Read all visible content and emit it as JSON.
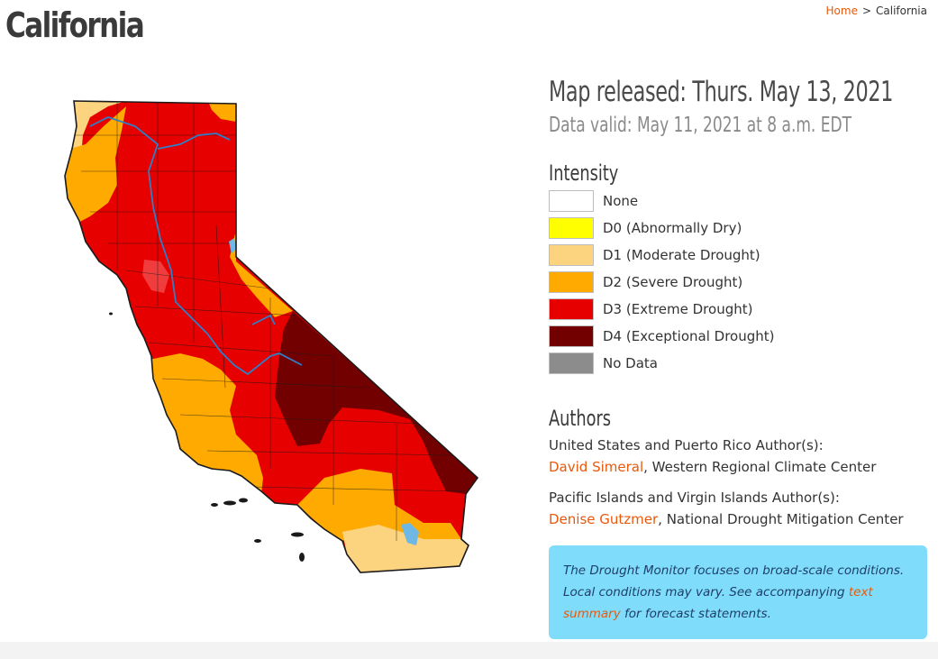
{
  "page": {
    "title": "California"
  },
  "breadcrumb": {
    "home": "Home",
    "separator": ">",
    "current": "California"
  },
  "map_info": {
    "released": "Map released: Thurs. May 13, 2021",
    "valid": "Data valid: May 11, 2021 at 8 a.m. EDT"
  },
  "intensity": {
    "heading": "Intensity",
    "items": [
      {
        "label": "None",
        "color": "#ffffff"
      },
      {
        "label": "D0 (Abnormally Dry)",
        "color": "#ffff00"
      },
      {
        "label": "D1 (Moderate Drought)",
        "color": "#fcd37f"
      },
      {
        "label": "D2 (Severe Drought)",
        "color": "#ffaa00"
      },
      {
        "label": "D3 (Extreme Drought)",
        "color": "#e60000"
      },
      {
        "label": "D4 (Exceptional Drought)",
        "color": "#730000"
      },
      {
        "label": "No Data",
        "color": "#8c8c8c"
      }
    ]
  },
  "authors": {
    "heading": "Authors",
    "groups": [
      {
        "region": "United States and Puerto Rico Author(s):",
        "name": "David Simeral",
        "affiliation": ", Western Regional Climate Center"
      },
      {
        "region": "Pacific Islands and Virgin Islands Author(s):",
        "name": "Denise Gutzmer",
        "affiliation": ", National Drought Mitigation Center"
      }
    ]
  },
  "note": {
    "text_before": "The Drought Monitor focuses on broad-scale conditions. Local conditions may vary. See accompanying ",
    "link": "text summary",
    "text_after": " for forecast statements."
  },
  "map_colors": {
    "d1": "#fcd37f",
    "d2": "#ffaa00",
    "d3": "#e60000",
    "d4": "#730000",
    "d3_light": "#f03c3c",
    "water": "#6fb8e6",
    "river": "#2f7fc8",
    "border": "#1a1a1a"
  }
}
